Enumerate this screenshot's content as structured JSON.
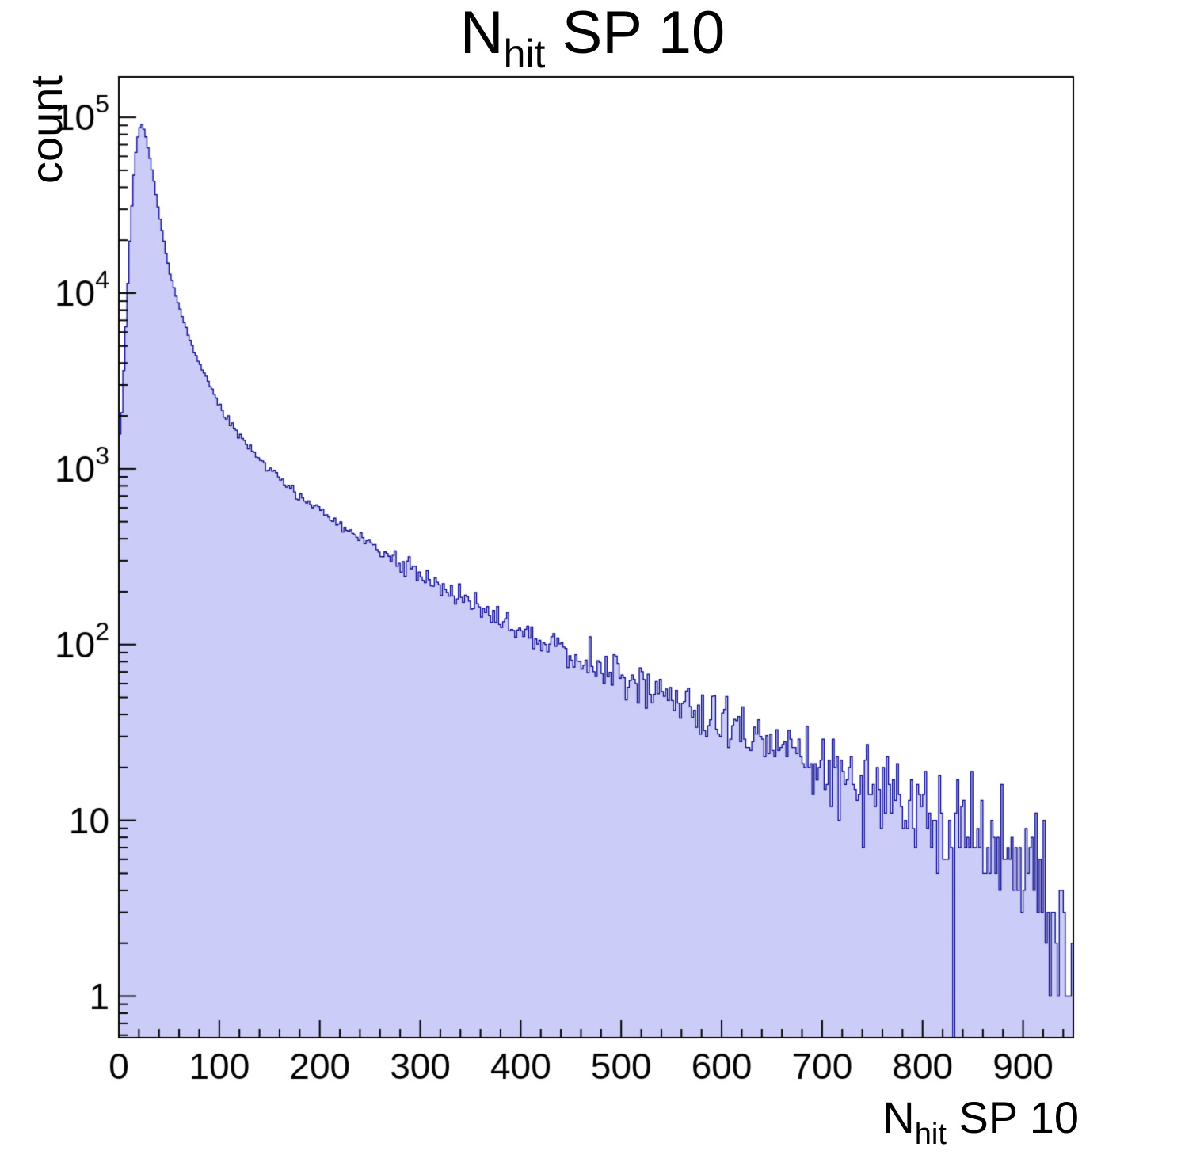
{
  "title": {
    "main": "N",
    "sub": "hit",
    "rest": " SP 10"
  },
  "axes": {
    "y_label": "count",
    "x_label_main": "N",
    "x_label_sub": "hit",
    "x_label_rest": " SP 10"
  },
  "chart_data": {
    "type": "histogram",
    "title": "N_hit SP 10",
    "xlabel": "N_hit SP 10",
    "ylabel": "count",
    "x_range": [
      0,
      950
    ],
    "y_range_log": [
      0.58,
      170000
    ],
    "y_scale": "log",
    "grid": false,
    "legend": "none",
    "x_major_ticks": [
      0,
      100,
      200,
      300,
      400,
      500,
      600,
      700,
      800,
      900
    ],
    "x_minor_step": 20,
    "y_major_tick_exponents": [
      0,
      1,
      2,
      3,
      4,
      5
    ],
    "bin_width": 2,
    "noise_seed": 20,
    "zero_bins_x": [
      831
    ],
    "peak": {
      "x": 22,
      "count": 91000
    },
    "colors": {
      "fill": "#ccccf8",
      "line": "#00008b",
      "axis": "#000000",
      "text": "#000000",
      "background": "#ffffff"
    },
    "profile_points": [
      [
        0,
        2800
      ],
      [
        1,
        1600
      ],
      [
        3,
        2100
      ],
      [
        5,
        3600
      ],
      [
        8,
        8500
      ],
      [
        12,
        26000
      ],
      [
        16,
        57000
      ],
      [
        20,
        86000
      ],
      [
        23,
        91000
      ],
      [
        26,
        83000
      ],
      [
        30,
        63000
      ],
      [
        35,
        43000
      ],
      [
        40,
        28500
      ],
      [
        45,
        19500
      ],
      [
        50,
        13800
      ],
      [
        55,
        10700
      ],
      [
        60,
        8400
      ],
      [
        65,
        6800
      ],
      [
        70,
        5600
      ],
      [
        75,
        4700
      ],
      [
        80,
        4000
      ],
      [
        85,
        3450
      ],
      [
        90,
        3000
      ],
      [
        95,
        2620
      ],
      [
        100,
        2300
      ],
      [
        110,
        1860
      ],
      [
        120,
        1560
      ],
      [
        130,
        1330
      ],
      [
        140,
        1150
      ],
      [
        150,
        1010
      ],
      [
        160,
        890
      ],
      [
        170,
        790
      ],
      [
        180,
        705
      ],
      [
        190,
        635
      ],
      [
        200,
        575
      ],
      [
        210,
        525
      ],
      [
        220,
        480
      ],
      [
        230,
        440
      ],
      [
        240,
        405
      ],
      [
        250,
        372
      ],
      [
        260,
        343
      ],
      [
        270,
        316
      ],
      [
        280,
        292
      ],
      [
        290,
        269
      ],
      [
        300,
        249
      ],
      [
        320,
        214
      ],
      [
        340,
        185
      ],
      [
        360,
        161
      ],
      [
        380,
        140
      ],
      [
        400,
        122
      ],
      [
        420,
        107
      ],
      [
        440,
        94
      ],
      [
        460,
        83
      ],
      [
        480,
        73
      ],
      [
        500,
        64
      ],
      [
        520,
        57
      ],
      [
        540,
        51
      ],
      [
        560,
        45
      ],
      [
        580,
        40
      ],
      [
        600,
        36
      ],
      [
        620,
        32
      ],
      [
        640,
        28
      ],
      [
        660,
        25
      ],
      [
        680,
        23
      ],
      [
        700,
        20
      ],
      [
        720,
        18
      ],
      [
        740,
        16
      ],
      [
        760,
        15
      ],
      [
        780,
        13
      ],
      [
        800,
        12
      ],
      [
        820,
        10
      ],
      [
        840,
        9
      ],
      [
        860,
        8
      ],
      [
        880,
        7
      ],
      [
        900,
        6
      ],
      [
        915,
        5
      ],
      [
        925,
        4
      ],
      [
        935,
        2
      ],
      [
        945,
        1
      ],
      [
        950,
        1
      ]
    ]
  }
}
